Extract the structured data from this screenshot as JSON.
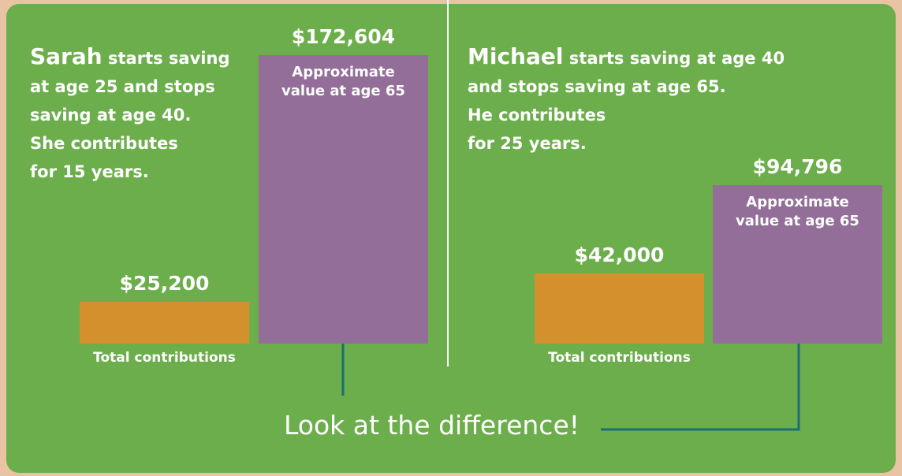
{
  "chart_data": [
    {
      "type": "bar",
      "person": "Sarah",
      "lines": [
        "starts saving",
        "at age 25 and stops",
        "saving at age 40.",
        "She contributes",
        "for 15 years."
      ],
      "categories": [
        "Total contributions",
        "Approximate value at age 65"
      ],
      "values": [
        25200,
        172604
      ],
      "value_labels": [
        "$25,200",
        "$172,604"
      ],
      "colors": [
        "#d4902c",
        "#926e98"
      ]
    },
    {
      "type": "bar",
      "person": "Michael",
      "lines": [
        "starts saving at age 40",
        "and stops saving at age 65.",
        "He contributes",
        "for 25 years."
      ],
      "categories": [
        "Total contributions",
        "Approximate value at age 65"
      ],
      "values": [
        42000,
        94796
      ],
      "value_labels": [
        "$42,000",
        "$94,796"
      ],
      "colors": [
        "#d4902c",
        "#926e98"
      ]
    }
  ],
  "footer": "Look at the difference!"
}
